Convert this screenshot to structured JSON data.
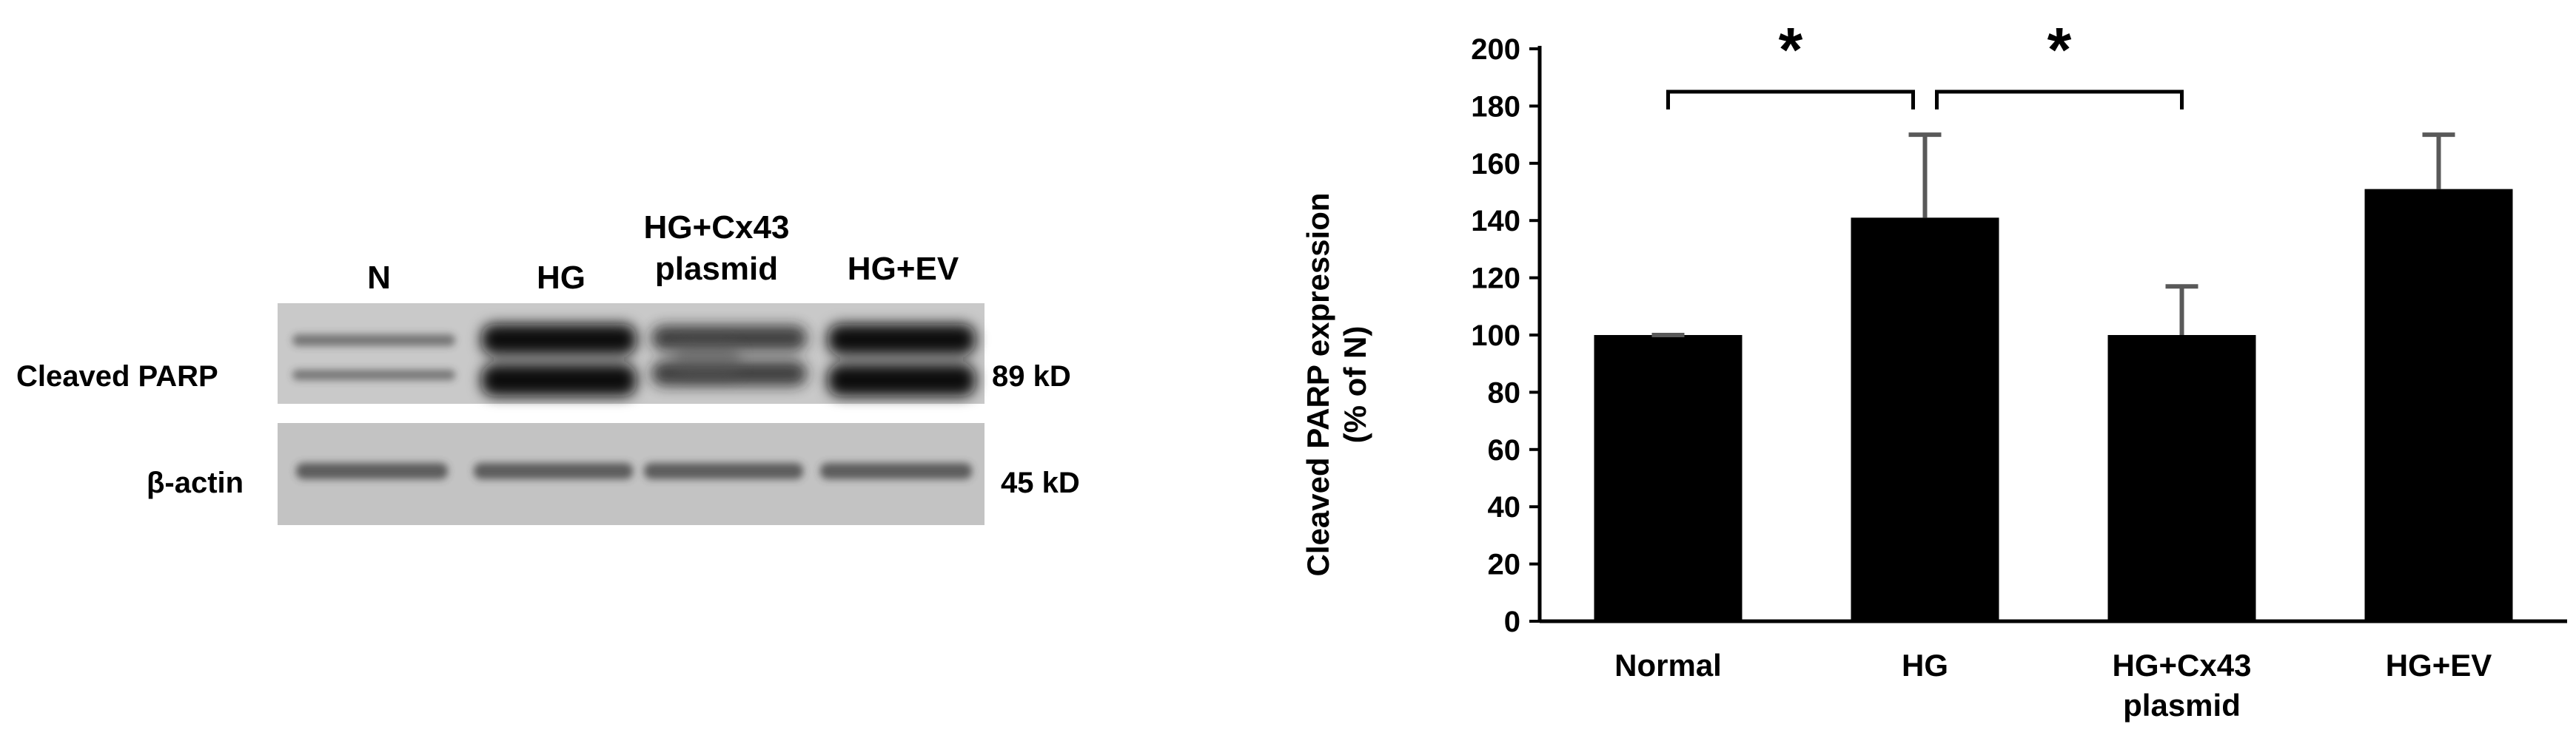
{
  "blot": {
    "lane_labels": [
      {
        "lines": [
          "N"
        ]
      },
      {
        "lines": [
          "HG"
        ]
      },
      {
        "lines": [
          "HG+Cx43",
          "plasmid"
        ]
      },
      {
        "lines": [
          "HG+EV"
        ]
      }
    ],
    "rows": [
      {
        "label": "Cleaved PARP",
        "size": "89 kD"
      },
      {
        "label": "β-actin",
        "size": "45 kD"
      }
    ]
  },
  "chart_data": {
    "type": "bar",
    "categories": [
      [
        "Normal"
      ],
      [
        "HG"
      ],
      [
        "HG+Cx43",
        "plasmid"
      ],
      [
        "HG+EV"
      ]
    ],
    "values": [
      100,
      141,
      100,
      151
    ],
    "errors": [
      0,
      29,
      17,
      19
    ],
    "title": "",
    "xlabel": "",
    "ylabel": [
      "Cleaved PARP expression",
      "(% of N)"
    ],
    "ylim": [
      0,
      200
    ],
    "yticks": [
      0,
      20,
      40,
      60,
      80,
      100,
      120,
      140,
      160,
      180,
      200
    ],
    "grid": false,
    "significance": [
      {
        "from": 0,
        "to": 1,
        "label": "*"
      },
      {
        "from": 1,
        "to": 2,
        "label": "*"
      }
    ],
    "colors": {
      "bar": "#000000",
      "error": "#595959",
      "axis": "#000000"
    }
  }
}
